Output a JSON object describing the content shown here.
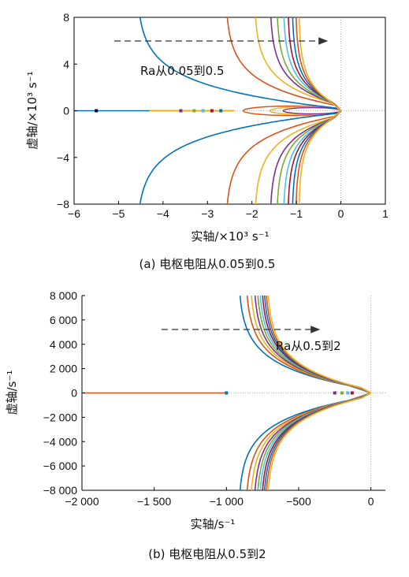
{
  "chart_data": [
    {
      "type": "line",
      "caption": "(a) 电枢电阻从0.05到0.5",
      "xlabel": "实轴/×10³ s⁻¹",
      "ylabel": "虚轴/×10³ s⁻¹",
      "xlim": [
        -6,
        1
      ],
      "ylim": [
        -8,
        8
      ],
      "xticks": [
        "−6",
        "−5",
        "−4",
        "−3",
        "−2",
        "−1",
        "0",
        "1"
      ],
      "yticks": [
        "−8",
        "−4",
        "0",
        "4",
        "8"
      ],
      "annotation": "Ra从0.05到0.5",
      "grid": false,
      "colors": [
        "#0072BD",
        "#D95319",
        "#EDB120",
        "#7E2F8E",
        "#77AC30",
        "#4DBEEE",
        "#A2142F",
        "#0072BD",
        "#D95319",
        "#EDB120"
      ],
      "series": [
        {
          "asymptote": -4.6,
          "vx": -0.05,
          "vy": 0.2
        },
        {
          "asymptote": -2.6,
          "vx": -0.1,
          "vy": 0.45
        },
        {
          "asymptote": -1.95,
          "vx": -0.14,
          "vy": 0.6
        },
        {
          "asymptote": -1.6,
          "vx": -0.17,
          "vy": 0.65
        },
        {
          "asymptote": -1.45,
          "vx": -0.19,
          "vy": 0.7
        },
        {
          "asymptote": -1.3,
          "vx": -0.21,
          "vy": 0.75
        },
        {
          "asymptote": -1.2,
          "vx": -0.23,
          "vy": 0.8
        },
        {
          "asymptote": -1.1,
          "vx": -0.25,
          "vy": 0.85
        },
        {
          "asymptote": -1.02,
          "vx": -0.27,
          "vy": 0.9
        },
        {
          "asymptote": -0.95,
          "vx": -0.29,
          "vy": 0.95
        }
      ],
      "real_axis_poles": [
        -5.5,
        -3.6,
        -3.3,
        -3.1,
        -2.9,
        -2.7
      ],
      "loop_xmin": [
        -2.2,
        -1.6,
        -1.3
      ]
    },
    {
      "type": "line",
      "caption": "(b) 电枢电阻从0.5到2",
      "xlabel": "实轴/s⁻¹",
      "ylabel": "虚轴/s⁻¹",
      "xlim": [
        -2000,
        100
      ],
      "ylim": [
        -8000,
        8000
      ],
      "xticks": [
        "−2 000",
        "−1 500",
        "−1 000",
        "−500",
        "0"
      ],
      "yticks": [
        "−8 000",
        "−6 000",
        "−4 000",
        "−2 000",
        "0",
        "2 000",
        "4 000",
        "6 000",
        "8 000"
      ],
      "annotation": "Ra从0.5到2",
      "grid": false,
      "colors": [
        "#0072BD",
        "#D95319",
        "#EDB120",
        "#7E2F8E",
        "#77AC30",
        "#4DBEEE",
        "#A2142F",
        "#0072BD",
        "#D95319",
        "#EDB120"
      ],
      "series": [
        {
          "asymptote": -920,
          "vx": -150,
          "vy": 600
        },
        {
          "asymptote": -870,
          "vx": -130,
          "vy": 560
        },
        {
          "asymptote": -840,
          "vx": -120,
          "vy": 540
        },
        {
          "asymptote": -815,
          "vx": -110,
          "vy": 520
        },
        {
          "asymptote": -795,
          "vx": -100,
          "vy": 500
        },
        {
          "asymptote": -778,
          "vx": -92,
          "vy": 485
        },
        {
          "asymptote": -762,
          "vx": -85,
          "vy": 470
        },
        {
          "asymptote": -748,
          "vx": -78,
          "vy": 455
        },
        {
          "asymptote": -735,
          "vx": -72,
          "vy": 440
        },
        {
          "asymptote": -722,
          "vx": -66,
          "vy": 425
        }
      ],
      "real_axis_start": -2000,
      "real_axis_end": -1000,
      "real_axis_poles": [
        -250,
        -200,
        -160,
        -130
      ]
    }
  ]
}
